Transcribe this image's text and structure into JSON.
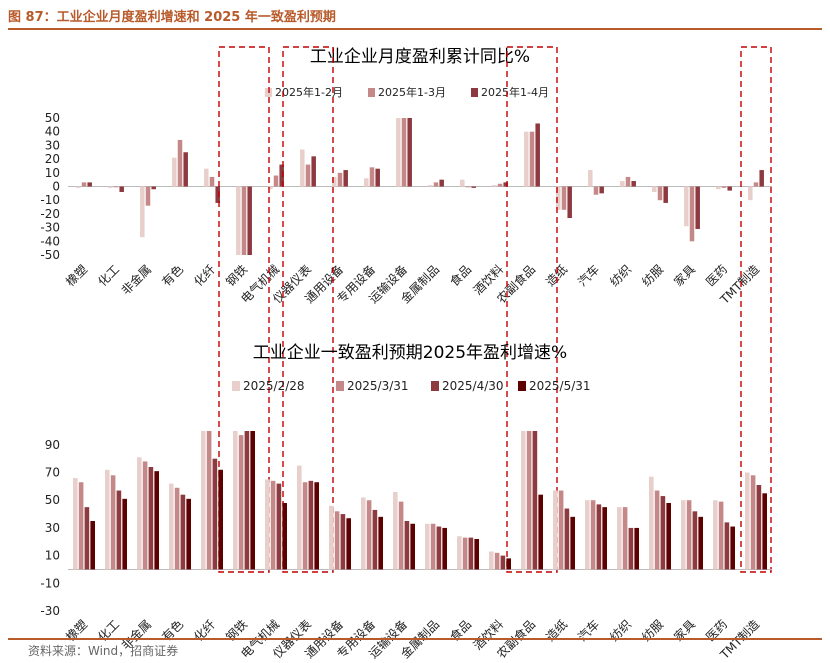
{
  "figure_title": "图 87：工业企业月度盈利增速和 2025 年一致盈利预期",
  "source": "资料来源：Wind，招商证券",
  "colors": {
    "s1": "#e8cfcb",
    "s2": "#c48888",
    "s3": "#8c3a3f",
    "s4": "#5c0000",
    "highlight": "#c00000",
    "accent": "#b85a2a"
  },
  "highlight_categories": [
    "钢铁",
    "仪器仪表",
    "农副食品",
    "TMT制造"
  ],
  "chart_data": [
    {
      "type": "bar",
      "title": "工业企业月度盈利累计同比%",
      "categories": [
        "橡塑",
        "化工",
        "非金属",
        "有色",
        "化纤",
        "钢铁",
        "电气机械",
        "仪器仪表",
        "通用设备",
        "专用设备",
        "运输设备",
        "金属制品",
        "食品",
        "酒饮料",
        "农副食品",
        "造纸",
        "汽车",
        "纺织",
        "纺服",
        "家具",
        "医药",
        "TMT制造"
      ],
      "ylim": [
        -50,
        50
      ],
      "yticks": [
        -50,
        -40,
        -30,
        -20,
        -10,
        0,
        10,
        20,
        30,
        40,
        50
      ],
      "legend_position": "top",
      "series": [
        {
          "name": "2025年1-2月",
          "values": [
            -1,
            -1,
            -37,
            21,
            13,
            -50,
            -2,
            27,
            7,
            6,
            50,
            1,
            5,
            1,
            40,
            -17,
            12,
            4,
            -4,
            -29,
            -2,
            -10
          ]
        },
        {
          "name": "2025年1-3月",
          "values": [
            3,
            0,
            -14,
            34,
            7,
            -50,
            8,
            16,
            10,
            14,
            50,
            3,
            0,
            2,
            40,
            -17,
            -6,
            7,
            -10,
            -40,
            -1,
            3
          ]
        },
        {
          "name": "2025年1-4月",
          "values": [
            3,
            -4,
            -2,
            25,
            -12,
            -50,
            16,
            22,
            12,
            13,
            50,
            5,
            -1,
            3,
            46,
            -23,
            -5,
            4,
            -12,
            -31,
            -3,
            12
          ]
        }
      ]
    },
    {
      "type": "bar",
      "title": "工业企业一致盈利预期2025年盈利增速%",
      "categories": [
        "橡塑",
        "化工",
        "非金属",
        "有色",
        "化纤",
        "钢铁",
        "电气机械",
        "仪器仪表",
        "通用设备",
        "专用设备",
        "运输设备",
        "金属制品",
        "食品",
        "酒饮料",
        "农副食品",
        "造纸",
        "汽车",
        "纺织",
        "纺服",
        "家具",
        "医药",
        "TMT制造"
      ],
      "ylim": [
        -30,
        100
      ],
      "yticks": [
        -30,
        -10,
        10,
        30,
        50,
        70,
        90
      ],
      "legend_position": "top",
      "series": [
        {
          "name": "2025/2/28",
          "values": [
            66,
            72,
            81,
            62,
            100,
            100,
            65,
            75,
            46,
            52,
            56,
            33,
            24,
            13,
            100,
            57,
            50,
            45,
            67,
            50,
            50,
            70
          ]
        },
        {
          "name": "2025/3/31",
          "values": [
            63,
            68,
            78,
            59,
            100,
            97,
            64,
            63,
            42,
            50,
            49,
            33,
            23,
            12,
            100,
            57,
            50,
            45,
            57,
            50,
            49,
            68
          ]
        },
        {
          "name": "2025/4/30",
          "values": [
            45,
            57,
            74,
            54,
            80,
            100,
            62,
            64,
            40,
            43,
            35,
            31,
            23,
            10,
            100,
            44,
            47,
            30,
            53,
            42,
            34,
            61
          ]
        },
        {
          "name": "2025/5/31",
          "values": [
            35,
            51,
            71,
            51,
            72,
            100,
            48,
            63,
            37,
            38,
            33,
            30,
            22,
            8,
            54,
            38,
            45,
            30,
            48,
            38,
            31,
            55
          ]
        }
      ]
    }
  ]
}
